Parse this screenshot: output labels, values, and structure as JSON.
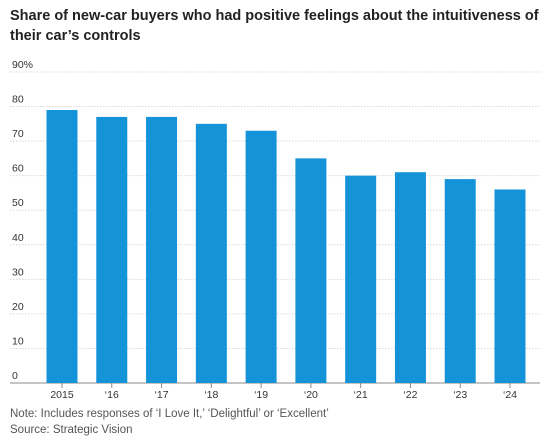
{
  "title": "Share of new-car buyers who had positive feelings about the intuitiveness of their car’s controls",
  "note": "Note: Includes responses of ‘I Love It,’ ‘Delightful’ or ‘Excellent’",
  "source": "Source: Strategic Vision",
  "chart_data": {
    "type": "bar",
    "categories": [
      "2015",
      "‘16",
      "‘17",
      "‘18",
      "‘19",
      "‘20",
      "‘21",
      "‘22",
      "‘23",
      "‘24"
    ],
    "values": [
      79,
      77,
      77,
      75,
      73,
      65,
      60,
      61,
      59,
      56
    ],
    "ylim": [
      0,
      90
    ],
    "yticks": [
      0,
      10,
      20,
      30,
      40,
      50,
      60,
      70,
      80,
      90
    ],
    "ytick_labels": [
      "0",
      "10",
      "20",
      "30",
      "40",
      "50",
      "60",
      "70",
      "80",
      "90%"
    ],
    "bar_color": "#1493d8",
    "grid": true
  }
}
